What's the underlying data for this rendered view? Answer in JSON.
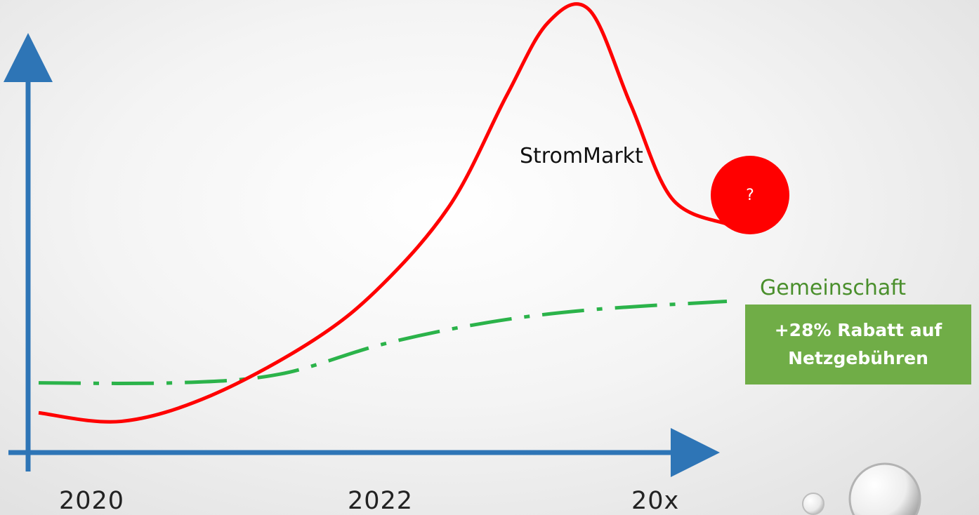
{
  "chart_data": {
    "type": "line",
    "x_ticks": [
      "2020",
      "2022",
      "20x"
    ],
    "series": [
      {
        "name": "StromMarkt",
        "color": "#ff0000",
        "style": "solid",
        "points": [
          [
            0.0,
            0.06
          ],
          [
            0.12,
            0.04
          ],
          [
            0.25,
            0.1
          ],
          [
            0.4,
            0.23
          ],
          [
            0.5,
            0.36
          ],
          [
            0.6,
            0.55
          ],
          [
            0.68,
            0.8
          ],
          [
            0.74,
            0.97
          ],
          [
            0.8,
            1.0
          ],
          [
            0.86,
            0.78
          ],
          [
            0.92,
            0.56
          ],
          [
            1.0,
            0.5
          ]
        ]
      },
      {
        "name": "Gemeinschaft",
        "color": "#2bb34a",
        "style": "dash-dot",
        "points": [
          [
            0.0,
            0.13
          ],
          [
            0.2,
            0.13
          ],
          [
            0.35,
            0.15
          ],
          [
            0.5,
            0.22
          ],
          [
            0.65,
            0.27
          ],
          [
            0.8,
            0.3
          ],
          [
            1.0,
            0.32
          ]
        ]
      }
    ],
    "callouts": {
      "question": "?",
      "discount_line1": "+28% Rabatt auf",
      "discount_line2": "Netzgebühren"
    },
    "axis_color": "#2e75b6",
    "grid": false
  }
}
